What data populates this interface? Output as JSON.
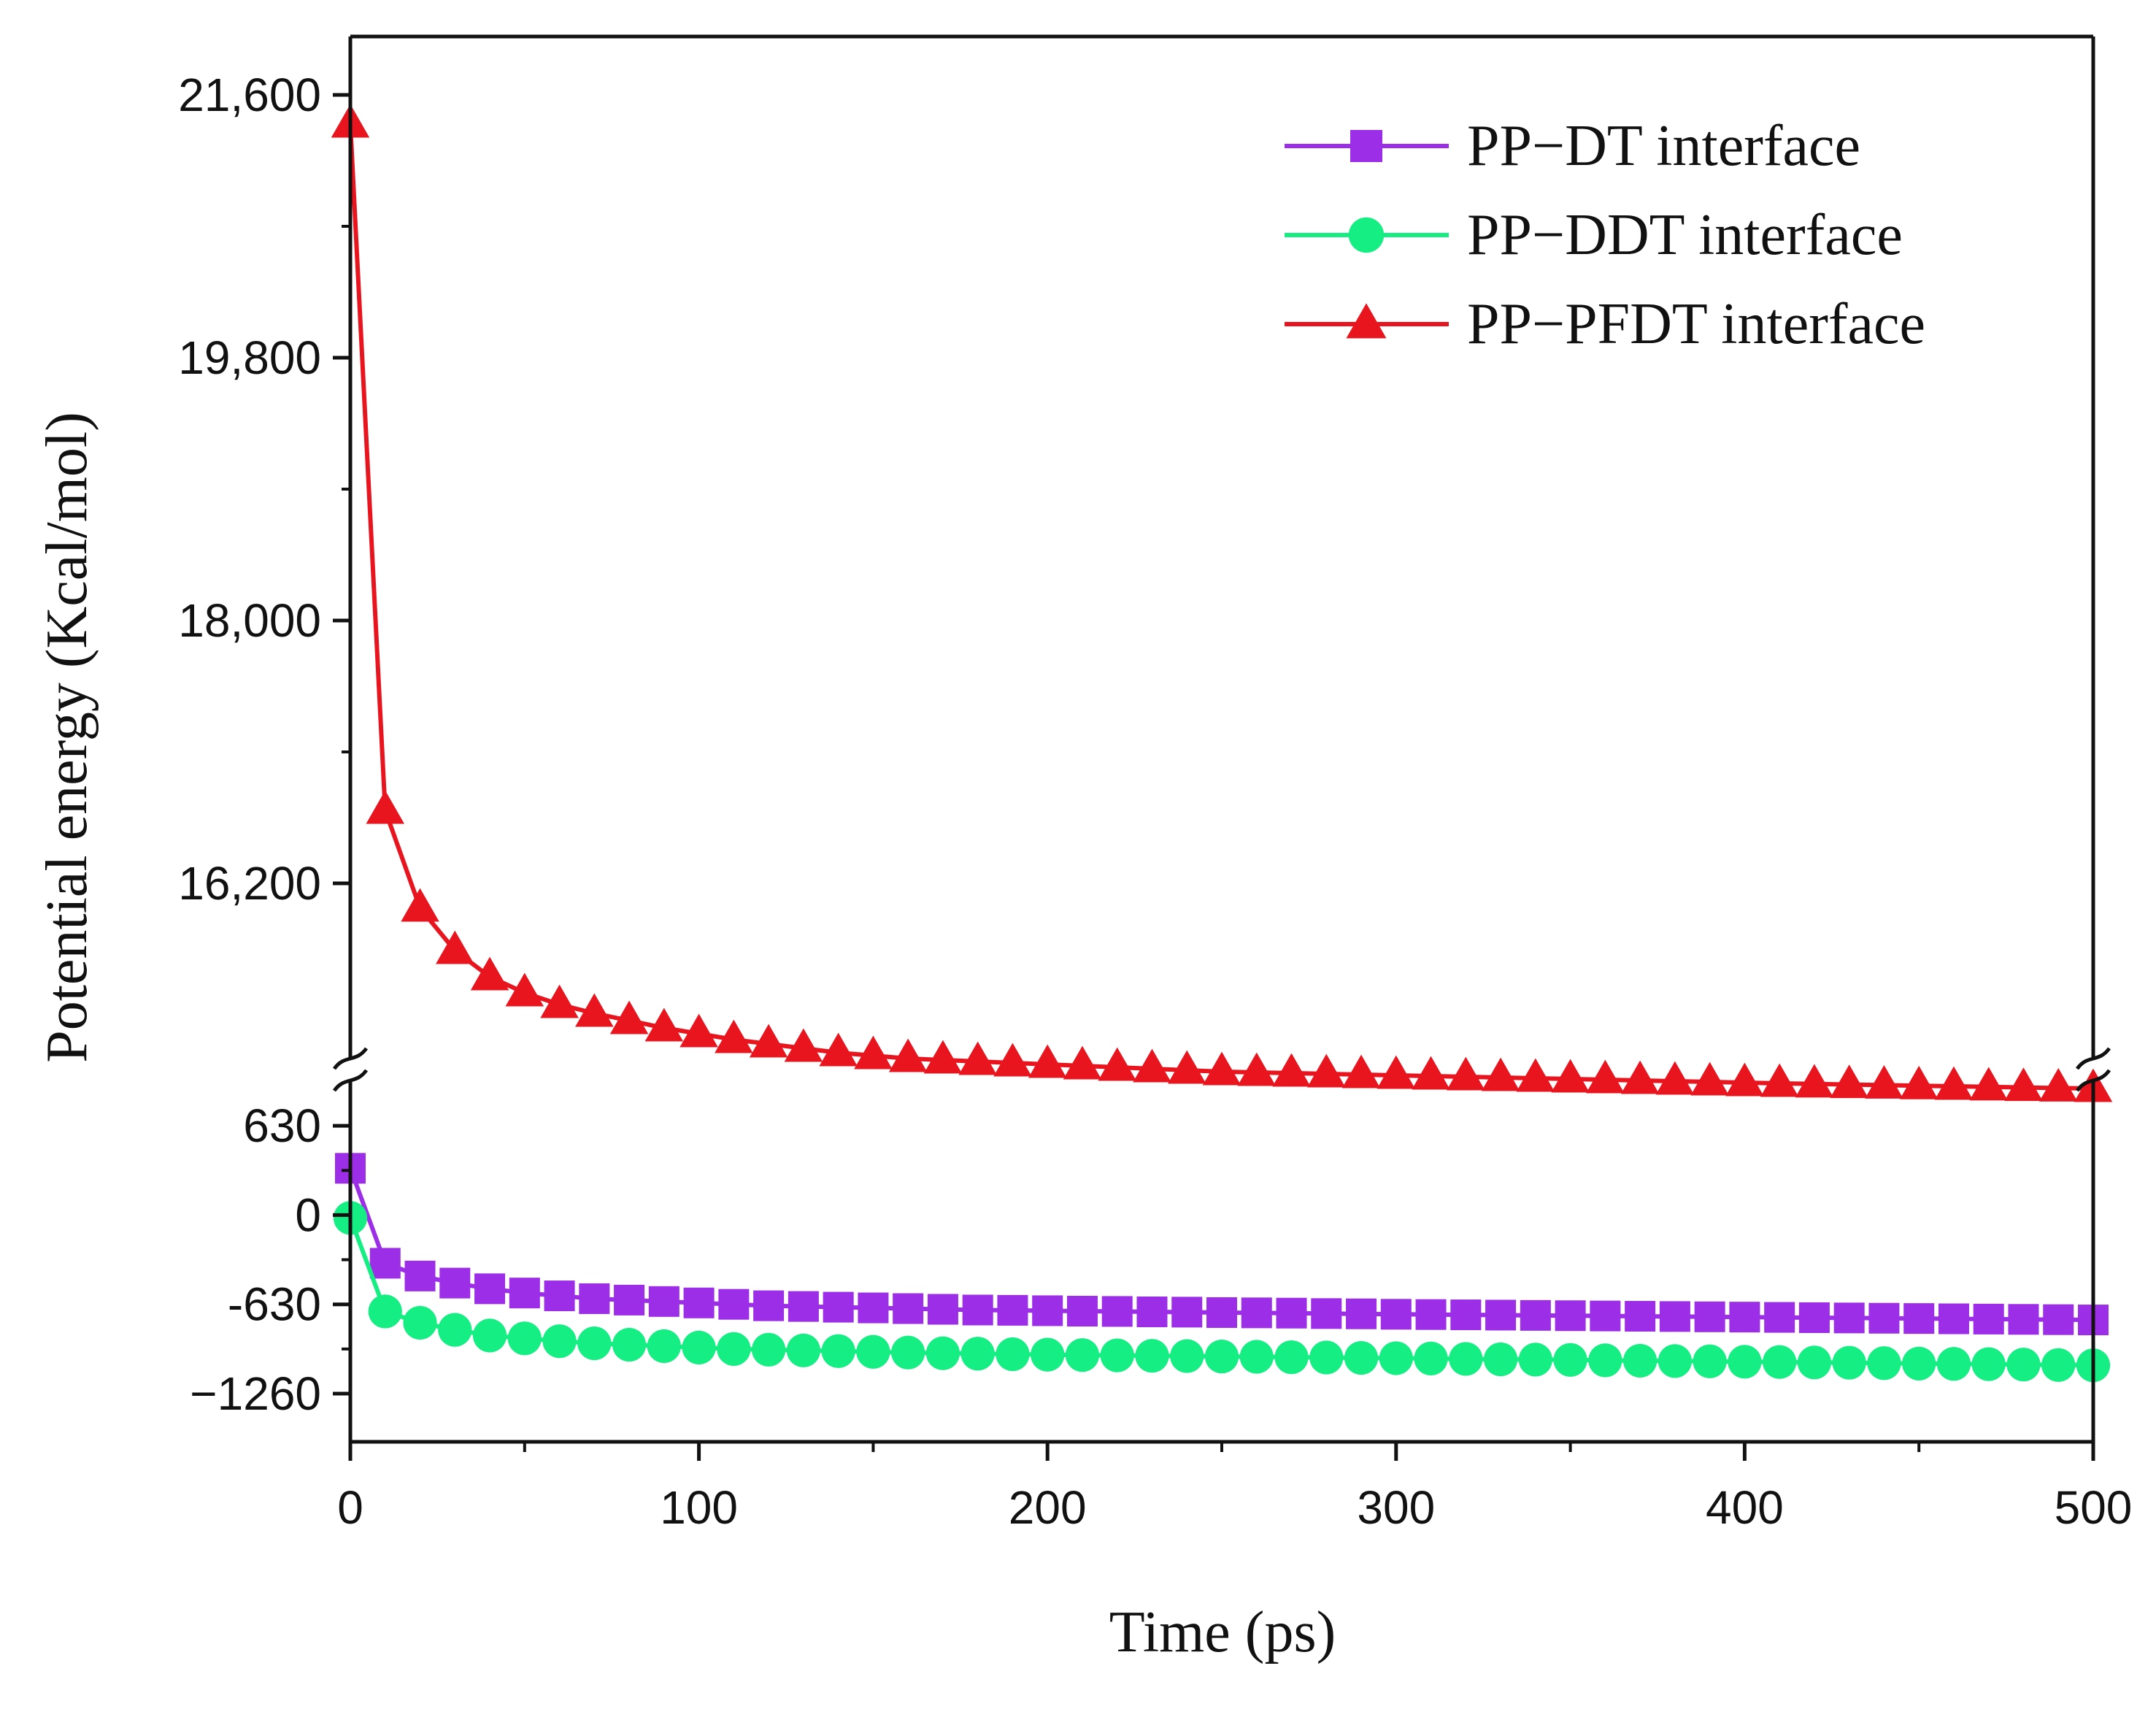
{
  "chart_data": {
    "type": "line",
    "xlabel": "Time (ps)",
    "ylabel": "Potential energy (Kcal/mol)",
    "xlim": [
      0,
      500
    ],
    "x_ticks": [
      0,
      100,
      200,
      300,
      400,
      500
    ],
    "x_tick_labels": [
      "0",
      "100",
      "200",
      "300",
      "400",
      "500"
    ],
    "y_axis_break": true,
    "upper_panel": {
      "ylim": [
        15000,
        22000
      ],
      "y_ticks": [
        16200,
        18000,
        19800,
        21600
      ],
      "y_tick_labels": [
        "16,200",
        "18,000",
        "19,800",
        "21,600"
      ]
    },
    "lower_panel": {
      "ylim": [
        -1600,
        950
      ],
      "y_ticks": [
        -1260,
        -630,
        0,
        630
      ],
      "y_tick_labels": [
        "−1260",
        "-630",
        "0",
        "630"
      ]
    },
    "legend_position": "top-right",
    "x": [
      0,
      10,
      20,
      30,
      40,
      50,
      60,
      70,
      80,
      90,
      100,
      110,
      120,
      130,
      140,
      150,
      160,
      170,
      180,
      190,
      200,
      210,
      220,
      230,
      240,
      250,
      260,
      270,
      280,
      290,
      300,
      310,
      320,
      330,
      340,
      350,
      360,
      370,
      380,
      390,
      400,
      410,
      420,
      430,
      440,
      450,
      460,
      470,
      480,
      490,
      500
    ],
    "series": [
      {
        "name": "PP−DT interface",
        "panel": "lower",
        "color": "#9b2ee6",
        "marker": "square",
        "values": [
          330,
          -340,
          -430,
          -480,
          -520,
          -550,
          -570,
          -590,
          -600,
          -610,
          -620,
          -630,
          -640,
          -645,
          -650,
          -655,
          -660,
          -665,
          -670,
          -672,
          -675,
          -678,
          -680,
          -683,
          -685,
          -688,
          -690,
          -692,
          -695,
          -697,
          -700,
          -702,
          -704,
          -706,
          -708,
          -710,
          -712,
          -714,
          -716,
          -718,
          -720,
          -722,
          -724,
          -726,
          -728,
          -730,
          -732,
          -734,
          -736,
          -738,
          -740
        ]
      },
      {
        "name": "PP−DDT interface",
        "panel": "lower",
        "color": "#14ee82",
        "marker": "circle",
        "values": [
          -20,
          -680,
          -760,
          -810,
          -850,
          -870,
          -890,
          -905,
          -915,
          -925,
          -935,
          -945,
          -950,
          -955,
          -960,
          -965,
          -970,
          -975,
          -978,
          -982,
          -985,
          -988,
          -990,
          -993,
          -995,
          -998,
          -1000,
          -1003,
          -1005,
          -1008,
          -1010,
          -1012,
          -1015,
          -1018,
          -1020,
          -1022,
          -1025,
          -1028,
          -1030,
          -1032,
          -1035,
          -1037,
          -1040,
          -1042,
          -1045,
          -1048,
          -1050,
          -1052,
          -1055,
          -1058,
          -1060
        ]
      },
      {
        "name": "PP−PFDT interface",
        "panel": "upper",
        "color": "#e8141e",
        "marker": "triangle",
        "values": [
          21400,
          16700,
          16030,
          15740,
          15560,
          15450,
          15370,
          15310,
          15260,
          15210,
          15170,
          15130,
          15100,
          15070,
          15040,
          15020,
          15000,
          14990,
          14980,
          14970,
          14960,
          14950,
          14940,
          14930,
          14920,
          14910,
          14905,
          14900,
          14895,
          14890,
          14885,
          14880,
          14875,
          14870,
          14865,
          14860,
          14855,
          14850,
          14845,
          14840,
          14835,
          14830,
          14826,
          14822,
          14818,
          14814,
          14810,
          14806,
          14802,
          14798,
          14795
        ]
      }
    ]
  }
}
